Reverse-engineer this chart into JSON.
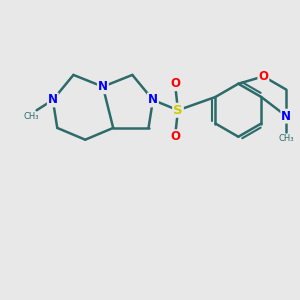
{
  "background_color": "#e8e8e8",
  "bond_color": "#2d6b6b",
  "nitrogen_color": "#0000ff",
  "oxygen_color": "#ff0000",
  "sulfur_color": "#cccc00",
  "line_width": 1.8,
  "figsize": [
    3.0,
    3.0
  ],
  "dpi": 100,
  "xlim": [
    0,
    10
  ],
  "ylim": [
    0,
    10
  ]
}
